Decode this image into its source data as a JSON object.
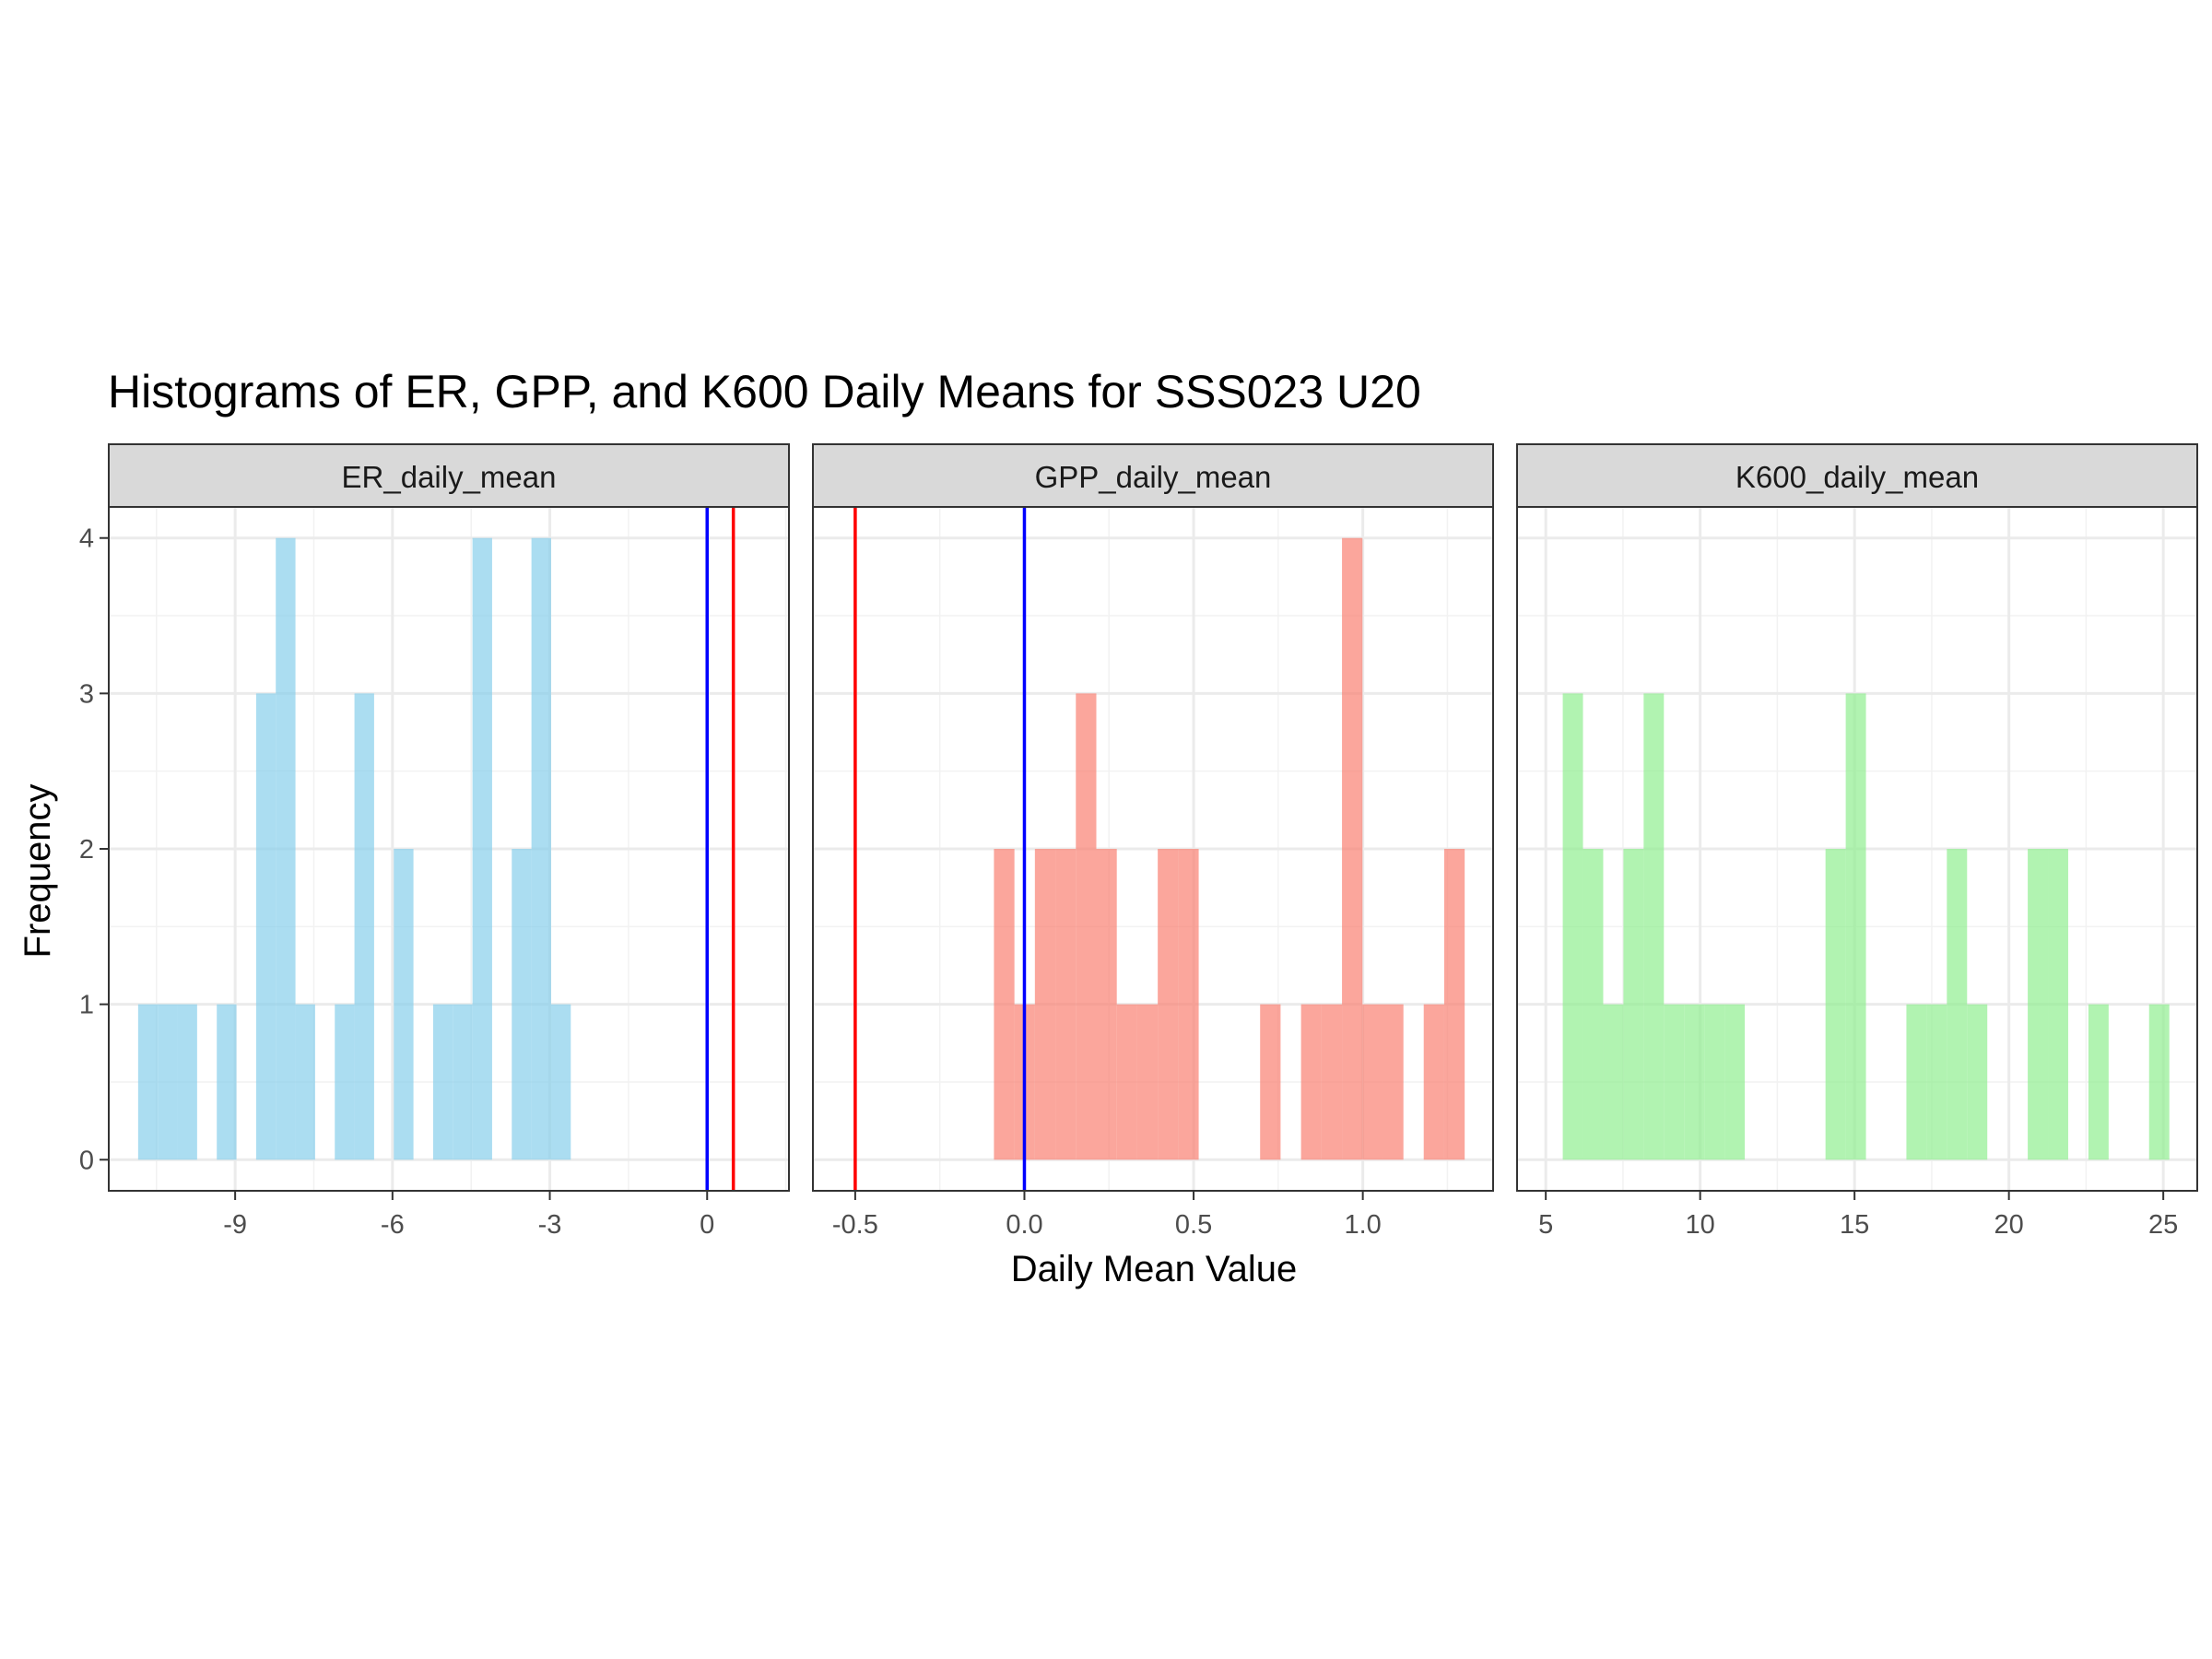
{
  "chart_data": {
    "type": "bar",
    "title": "Histograms of ER, GPP, and K600 Daily Means for SSS023 U20",
    "xlabel": "Daily Mean Value",
    "ylabel": "Frequency",
    "ylim": [
      0,
      4
    ],
    "y_ticks": [
      0,
      1,
      2,
      3,
      4
    ],
    "y_tick_labels": [
      "0",
      "1",
      "2",
      "3",
      "4"
    ],
    "grid": true,
    "facets": [
      {
        "name": "ER_daily_mean",
        "fill": "#87CEEB",
        "xlim": [
          -11.41,
          1.56
        ],
        "x_ticks": [
          -9,
          -6,
          -3,
          0
        ],
        "x_tick_labels": [
          "-9",
          "-6",
          "-3",
          "0"
        ],
        "bin_width": 0.375,
        "bins": [
          {
            "x0": -10.85,
            "count": 1
          },
          {
            "x0": -10.475,
            "count": 1
          },
          {
            "x0": -10.1,
            "count": 1
          },
          {
            "x0": -9.35,
            "count": 1
          },
          {
            "x0": -8.6,
            "count": 3
          },
          {
            "x0": -8.225,
            "count": 4
          },
          {
            "x0": -7.85,
            "count": 1
          },
          {
            "x0": -7.1,
            "count": 1
          },
          {
            "x0": -6.725,
            "count": 3
          },
          {
            "x0": -5.975,
            "count": 2
          },
          {
            "x0": -5.225,
            "count": 1
          },
          {
            "x0": -4.85,
            "count": 1
          },
          {
            "x0": -4.475,
            "count": 4
          },
          {
            "x0": -3.725,
            "count": 2
          },
          {
            "x0": -3.35,
            "count": 4
          },
          {
            "x0": -2.975,
            "count": 1
          }
        ],
        "vlines": [
          {
            "x": 0.0,
            "color": "#0000FF"
          },
          {
            "x": 0.5,
            "color": "#FF0000"
          }
        ]
      },
      {
        "name": "GPP_daily_mean",
        "fill": "#FA8072",
        "xlim": [
          -0.625,
          1.385
        ],
        "x_ticks": [
          -0.5,
          0.0,
          0.5,
          1.0
        ],
        "x_tick_labels": [
          "-0.5",
          "0.0",
          "0.5",
          "1.0"
        ],
        "bin_width": 0.0605,
        "bins": [
          {
            "x0": -0.09,
            "count": 2
          },
          {
            "x0": -0.0295,
            "count": 1
          },
          {
            "x0": 0.031,
            "count": 2
          },
          {
            "x0": 0.0915,
            "count": 2
          },
          {
            "x0": 0.152,
            "count": 3
          },
          {
            "x0": 0.2125,
            "count": 2
          },
          {
            "x0": 0.273,
            "count": 1
          },
          {
            "x0": 0.3335,
            "count": 1
          },
          {
            "x0": 0.394,
            "count": 2
          },
          {
            "x0": 0.4545,
            "count": 2
          },
          {
            "x0": 0.6965,
            "count": 1
          },
          {
            "x0": 0.8175,
            "count": 1
          },
          {
            "x0": 0.878,
            "count": 1
          },
          {
            "x0": 0.9385,
            "count": 4
          },
          {
            "x0": 0.999,
            "count": 1
          },
          {
            "x0": 1.0595,
            "count": 1
          },
          {
            "x0": 1.18,
            "count": 1
          },
          {
            "x0": 1.2405,
            "count": 2
          }
        ],
        "vlines": [
          {
            "x": -0.5,
            "color": "#FF0000"
          },
          {
            "x": 0.0,
            "color": "#0000FF"
          }
        ]
      },
      {
        "name": "K600_daily_mean",
        "fill": "#90EE90",
        "xlim": [
          4.07,
          26.1
        ],
        "x_ticks": [
          5,
          10,
          15,
          20,
          25
        ],
        "x_tick_labels": [
          "5",
          "10",
          "15",
          "20",
          "25"
        ],
        "bin_width": 0.655,
        "bins": [
          {
            "x0": 5.55,
            "count": 3
          },
          {
            "x0": 6.205,
            "count": 2
          },
          {
            "x0": 6.86,
            "count": 1
          },
          {
            "x0": 7.515,
            "count": 2
          },
          {
            "x0": 8.17,
            "count": 3
          },
          {
            "x0": 8.825,
            "count": 1
          },
          {
            "x0": 9.48,
            "count": 1
          },
          {
            "x0": 10.135,
            "count": 1
          },
          {
            "x0": 10.79,
            "count": 1
          },
          {
            "x0": 14.06,
            "count": 2
          },
          {
            "x0": 14.715,
            "count": 3
          },
          {
            "x0": 16.68,
            "count": 1
          },
          {
            "x0": 17.335,
            "count": 1
          },
          {
            "x0": 17.99,
            "count": 2
          },
          {
            "x0": 18.645,
            "count": 1
          },
          {
            "x0": 20.61,
            "count": 2
          },
          {
            "x0": 21.265,
            "count": 2
          },
          {
            "x0": 22.575,
            "count": 1
          },
          {
            "x0": 24.54,
            "count": 1
          }
        ],
        "vlines": []
      }
    ]
  }
}
